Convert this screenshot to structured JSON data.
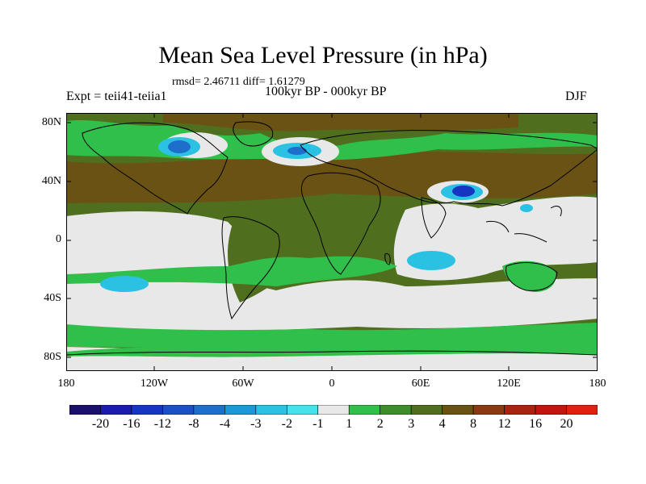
{
  "header": {
    "title": "Mean Sea Level Pressure (in hPa)",
    "stats": "rmsd= 2.46711 diff= 1.61279",
    "experiment": "Expt = teii41-teiia1",
    "period": "100kyr BP - 000kyr BP",
    "season": "DJF"
  },
  "axes": {
    "y_labels": [
      "80N",
      "40N",
      "0",
      "40S",
      "80S"
    ],
    "x_labels": [
      "180",
      "120W",
      "60W",
      "0",
      "60E",
      "120E",
      "180"
    ]
  },
  "colorbar": {
    "labels": [
      "-20",
      "-16",
      "-12",
      "-8",
      "-4",
      "-3",
      "-2",
      "-1",
      "1",
      "2",
      "3",
      "4",
      "8",
      "12",
      "16",
      "20"
    ],
    "colors": [
      "#1a0f6b",
      "#1b1bb0",
      "#1535c2",
      "#1a52c6",
      "#1d6fcb",
      "#1b98d8",
      "#2bc1e3",
      "#45e2eb",
      "#e8e8e8",
      "#2fbf4a",
      "#3d8e2a",
      "#4f6f1f",
      "#6a5215",
      "#8a3a10",
      "#a82410",
      "#c21510",
      "#e02010"
    ]
  },
  "map": {
    "colors": {
      "land_outline": "#000000",
      "green": "#2fbf4a",
      "dark_green": "#4f6f1f",
      "brown": "#6a5215",
      "gray": "#e8e8e8",
      "light_blue": "#2bc1e3",
      "blue": "#1d6fcb"
    }
  }
}
